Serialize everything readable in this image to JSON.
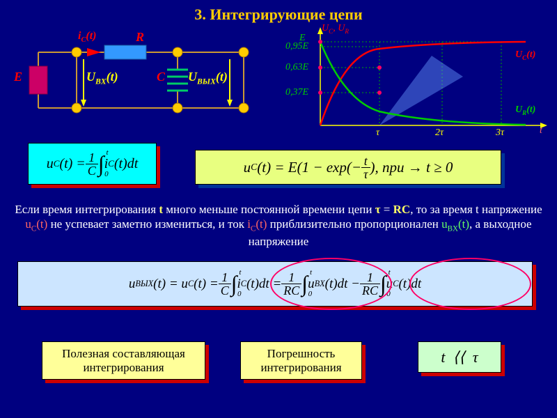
{
  "title": "3. Интегрирующие цепи",
  "circuit": {
    "E": "E",
    "R": "R",
    "C": "C",
    "ic": "i<sub>C</sub>(t)",
    "Uin": "U<sub>BX</sub>(t)",
    "Uout": "U<sub>BЫХ</sub>(t)",
    "wire_color": "#cc9933",
    "node_color": "#ffcc00",
    "resistor_color": "#3399ff",
    "cap_color": "#00cc66",
    "source_color": "#cc0066",
    "arrow_red": "#ff0000",
    "arrow_yellow": "#ffff00"
  },
  "chart": {
    "bg": "#000080",
    "axis_color": "#ffff00",
    "uc_color": "#ff0000",
    "ur_color": "#00cc00",
    "grid_color": "#00aa00",
    "yticks": [
      "E",
      "0,95E",
      "0,63E",
      "0,37E"
    ],
    "xticks": [
      "τ",
      "2τ",
      "3τ"
    ],
    "ylabel": "U<sub>C</sub>, U<sub>R</sub>",
    "xlabel": "t",
    "uc_label": "U<sub>C</sub>(t)",
    "ur_label": "U<sub>R</sub>(t)",
    "uc_label_color": "#ff0000",
    "ur_label_color": "#00cc00"
  },
  "eq1_html": "u<sub>C</sub>(t) = <span class='frac'><span class='num'>1</span><span class='den'>C</span></span><span class='intg'>∫<span class='lim-t'>t</span><span class='lim-b'>0</span></span> i<sub>C</sub>(t)dt",
  "eq2_html": "u<sub>C</sub>(t) = E(1 − exp(− <span class='frac'><span class='num'>t</span><span class='den'>τ</span></span>), npu → t ≥ 0",
  "para_html": "Если время интегрирования <span class='hl-t'>t</span> много меньше постоянной времени цепи <span class='hl-t'>τ</span> = <span class='hl-t'>RC</span>, то за время t напряжение <span class='hl-r'>u<sub>C</sub>(t)</span> не успевает заметно измениться, и  ток <span class='hl-r'>i<sub>C</sub>(t)</span> приблизительно пропорционален <span class='hl-g'>u<sub>BX</sub>(t)</span>, а выходное напряжение",
  "eq3_html": "u<sub>BЫХ</sub>(t) = u<sub>C</sub>(t) = <span class='frac'><span class='num'>1</span><span class='den'>C</span></span><span class='intg'>∫<span class='lim-t'>t</span><span class='lim-b'>0</span></span> i<sub>C</sub>(t)dt = <span class='frac'><span class='num'>1</span><span class='den'>RC</span></span><span class='intg'>∫<span class='lim-t'>t</span><span class='lim-b'>0</span></span> u<sub>BX</sub>(t)dt − <span class='frac'><span class='num'>1</span><span class='den'>RC</span></span><span class='intg'>∫<span class='lim-t'>t</span><span class='lim-b'>0</span></span> u<sub>C</sub>(t)dt",
  "label_useful": "Полезная составляющая интегрирования",
  "label_error": "Погрешность интегрирования",
  "eq4_html": "t &nbsp;⟨⟨&nbsp; τ",
  "ellipses": {
    "red": "#ff0066",
    "green": "#00cc00"
  }
}
